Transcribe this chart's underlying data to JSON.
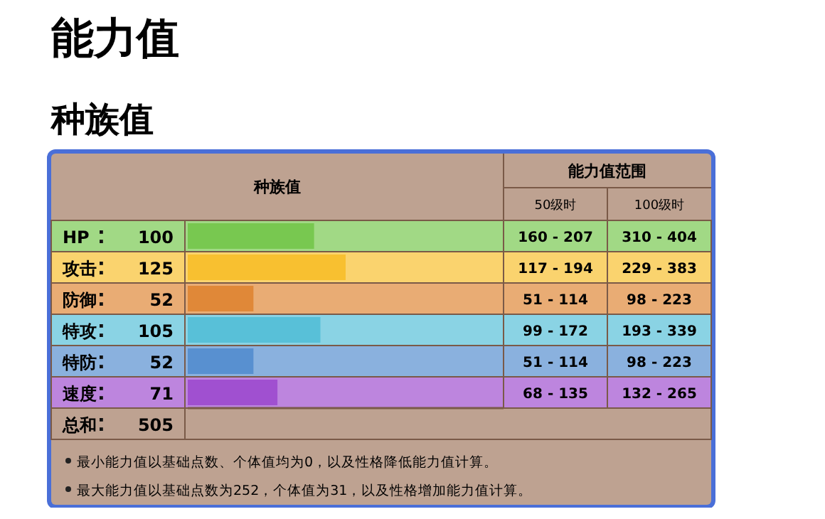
{
  "chart_data": {
    "type": "bar",
    "orientation": "horizontal",
    "title": "能力值",
    "subtitle": "种族值",
    "xlabel": "种族值",
    "categories": [
      "HP",
      "攻击",
      "防御",
      "特攻",
      "特防",
      "速度"
    ],
    "values": [
      100,
      125,
      52,
      105,
      52,
      71
    ],
    "colors": [
      "#78c850",
      "#f8c030",
      "#e08838",
      "#58c0d8",
      "#5890d0",
      "#a050d0"
    ],
    "xlim": [
      0,
      250
    ],
    "data_labels": true,
    "annotations": [
      "能力值范围",
      "50级时",
      "100级时",
      "160 - 207",
      "310 - 404",
      "117 - 194",
      "229 - 383",
      "51 - 114",
      "98 - 223",
      "99 - 172",
      "193 - 339",
      "51 - 114",
      "98 - 223",
      "68 - 135",
      "132 - 265",
      "总和",
      "505",
      "最小能力值以基础点数、个体值均为0，以及性格降低能力值计算。",
      "最大能力值以基础点数为252，个体值为31，以及性格增加能力值计算。"
    ]
  }
}
